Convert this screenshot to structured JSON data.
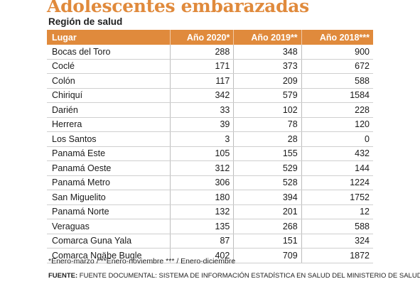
{
  "title": "Adolescentes embarazadas",
  "subtitle": "Región de salud",
  "headers": [
    "Lugar",
    "Año 2020*",
    "Año 2019**",
    "Año 2018***"
  ],
  "rows": [
    [
      "Bocas del Toro",
      "288",
      "348",
      "900"
    ],
    [
      "Coclé",
      "171",
      "373",
      "672"
    ],
    [
      "Colón",
      "117",
      "209",
      "588"
    ],
    [
      "Chiriquí",
      "342",
      "579",
      "1584"
    ],
    [
      "Darién",
      "33",
      "102",
      "228"
    ],
    [
      "Herrera",
      "39",
      "78",
      "120"
    ],
    [
      "Los Santos",
      "3",
      "28",
      "0"
    ],
    [
      "Panamá Este",
      "105",
      "155",
      "432"
    ],
    [
      "Panamá Oeste",
      "312",
      "529",
      "144"
    ],
    [
      "Panamá Metro",
      "306",
      "528",
      "1224"
    ],
    [
      "San Miguelito",
      "180",
      "394",
      "1752"
    ],
    [
      "Panamá Norte",
      "132",
      "201",
      "12"
    ],
    [
      "Veraguas",
      "135",
      "268",
      "588"
    ],
    [
      "Comarca Guna Yala",
      "87",
      "151",
      "324"
    ],
    [
      "Comarca Ngäbe Bugle",
      "402",
      "709",
      "1872"
    ]
  ],
  "note": "*Enero-marzo / **Enero-noviembre *** / Enero-diciembre",
  "source_label": "FUENTE:",
  "source_text": " FUENTE DOCUMENTAL: SISTEMA DE INFORMACIÓN ESTADÍSTICA EN SALUD DEL MINISTERIO DE SALUD",
  "colors": {
    "accent": "#e08a3c"
  }
}
